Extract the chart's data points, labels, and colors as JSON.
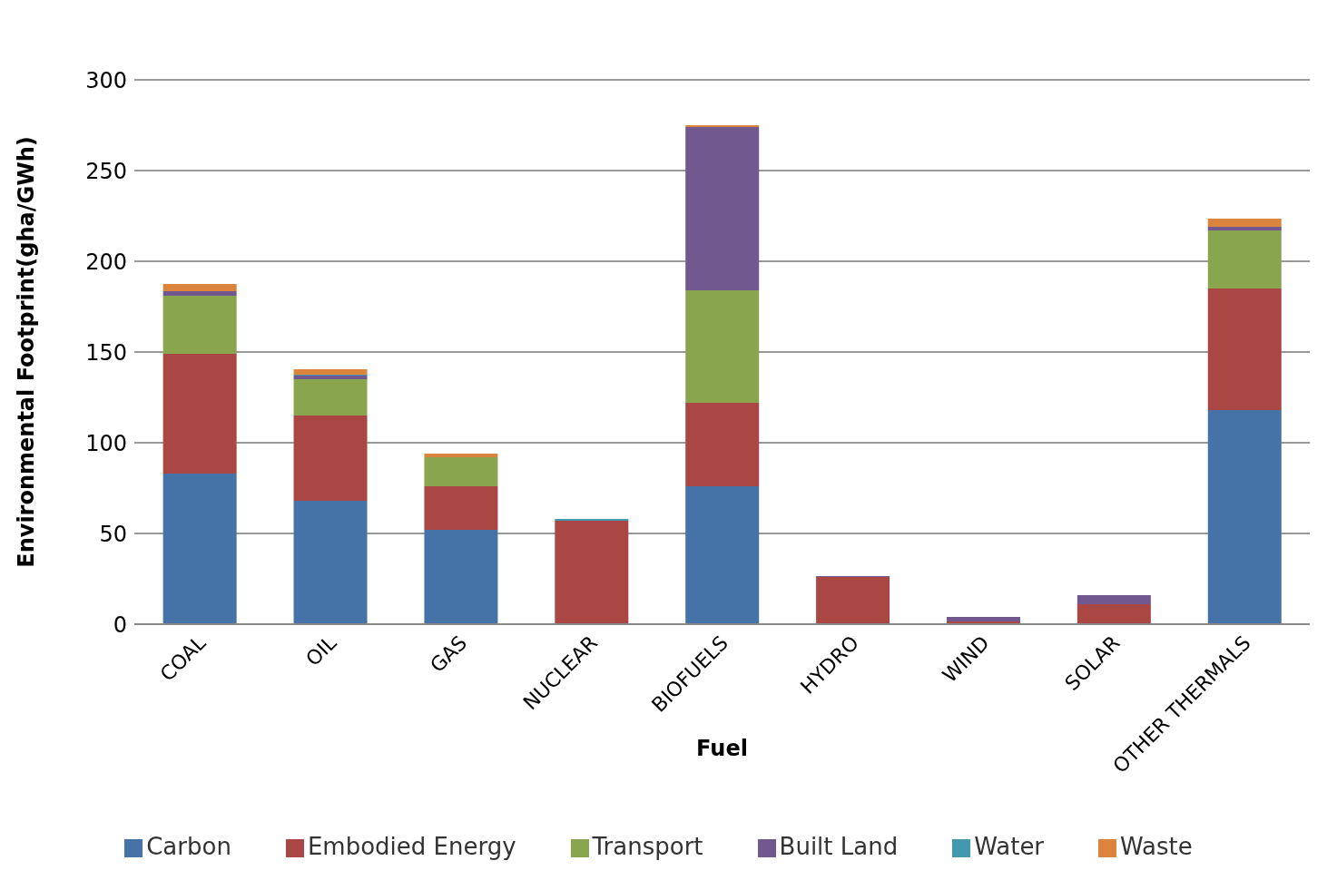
{
  "chart_data": {
    "type": "bar",
    "stacked": true,
    "xlabel": "Fuel",
    "ylabel": "Environmental Footprint(gha/GWh)",
    "categories": [
      "COAL",
      "OIL",
      "GAS",
      "NUCLEAR",
      "BIOFUELS",
      "HYDRO",
      "WIND",
      "SOLAR",
      "OTHER THERMALS"
    ],
    "series": [
      {
        "name": "Carbon",
        "color": "#4572a7",
        "values": [
          83,
          68,
          52,
          0,
          76,
          0,
          0,
          0,
          118
        ]
      },
      {
        "name": "Embodied Energy",
        "color": "#aa4643",
        "values": [
          66,
          47,
          24,
          57,
          46,
          26,
          1.5,
          11,
          67
        ]
      },
      {
        "name": "Transport",
        "color": "#89a54e",
        "values": [
          32,
          20,
          16,
          0,
          62,
          0,
          0,
          0,
          32
        ]
      },
      {
        "name": "Built Land",
        "color": "#71588f",
        "values": [
          2.5,
          2,
          0,
          0,
          90,
          0.5,
          2.5,
          5,
          2
        ]
      },
      {
        "name": "Water",
        "color": "#4198af",
        "values": [
          0,
          0.5,
          0,
          1,
          0,
          0,
          0,
          0,
          0
        ]
      },
      {
        "name": "Waste",
        "color": "#db843d",
        "values": [
          4,
          3,
          2,
          0,
          1,
          0,
          0,
          0,
          4.5
        ]
      }
    ],
    "ylim": [
      0,
      300
    ],
    "yticks": [
      0,
      50,
      100,
      150,
      200,
      250,
      300
    ],
    "grid": "y",
    "legend": "bottom"
  }
}
